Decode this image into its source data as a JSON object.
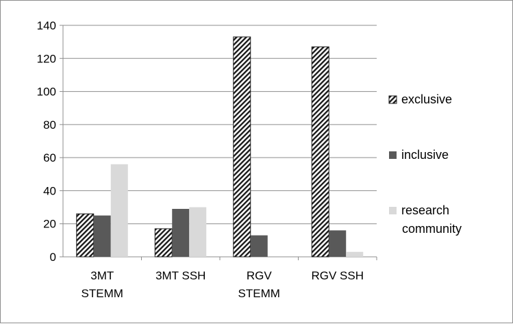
{
  "chart_data": {
    "type": "bar",
    "categories": [
      [
        "3MT",
        "STEMM"
      ],
      [
        "3MT SSH"
      ],
      [
        "RGV",
        "STEMM"
      ],
      [
        "RGV SSH"
      ]
    ],
    "series": [
      {
        "name": "exclusive",
        "values": [
          26,
          17,
          133,
          127
        ],
        "fill": "hatch",
        "color": "#1a1a1a"
      },
      {
        "name": "inclusive",
        "values": [
          25,
          29,
          13,
          16
        ],
        "fill": "solid",
        "color": "#595959"
      },
      {
        "name": "research community",
        "legend_lines": [
          "research",
          "community"
        ],
        "values": [
          56,
          30,
          0,
          3
        ],
        "fill": "solid",
        "color": "#d9d9d9"
      }
    ],
    "ylim": [
      0,
      140
    ],
    "yticks": [
      0,
      20,
      40,
      60,
      80,
      100,
      120,
      140
    ],
    "grid": true,
    "legend_position": "right",
    "title": "",
    "xlabel": "",
    "ylabel": ""
  }
}
